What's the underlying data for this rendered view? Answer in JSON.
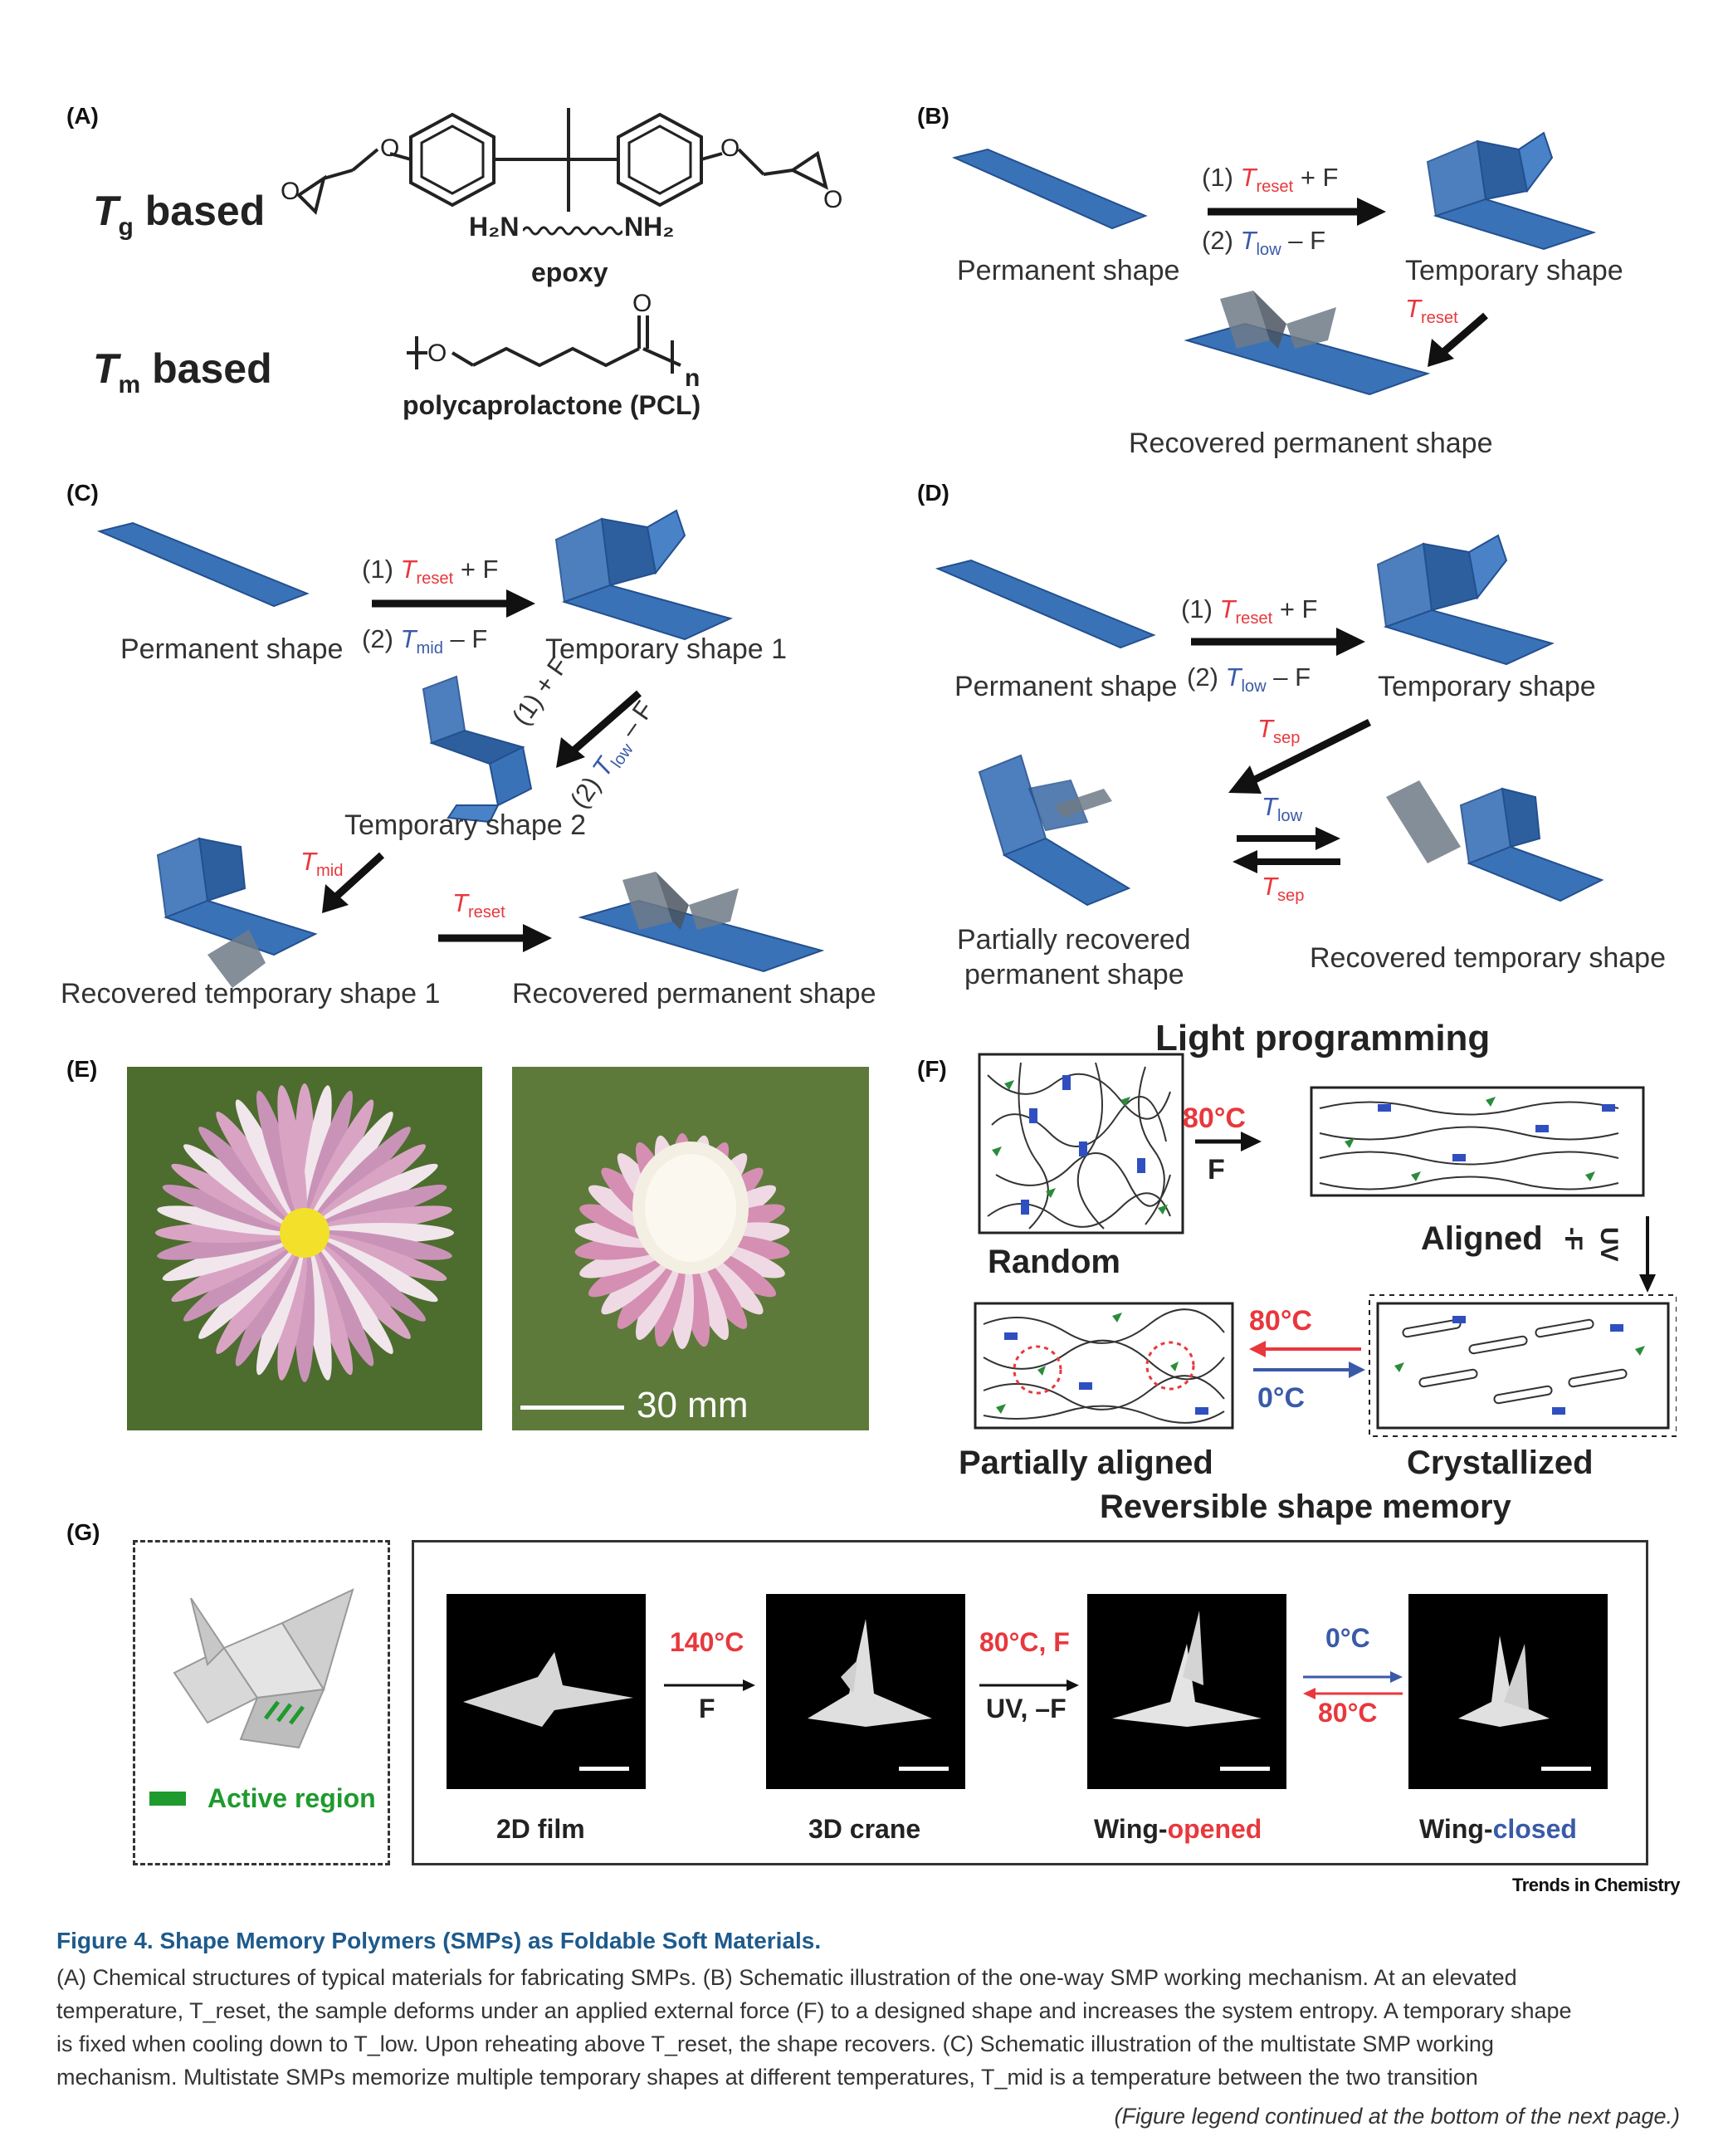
{
  "panels": {
    "A": {
      "label": "(A)",
      "tg": {
        "T": "T",
        "sub": "g",
        "rest": " based"
      },
      "tm": {
        "T": "T",
        "sub": "m",
        "rest": " based"
      },
      "epoxy_amine": "H₂N",
      "epoxy_amine_end": "NH₂",
      "epoxy_name": "epoxy",
      "pcl_name": "polycaprolactone (PCL)",
      "pcl_n": "n",
      "atom_O": "O"
    },
    "B": {
      "label": "(B)",
      "permanent": "Permanent shape",
      "temporary": "Temporary shape",
      "recovered": "Recovered permanent shape",
      "step1_prefix": "(1) ",
      "step1_T": "T",
      "step1_sub": "reset",
      "step1_suffix": " + F",
      "step2_prefix": "(2) ",
      "step2_T": "T",
      "step2_sub": "low",
      "step2_suffix": " – F",
      "reset_T": "T",
      "reset_sub": "reset"
    },
    "C": {
      "label": "(C)",
      "permanent": "Permanent shape",
      "temporary1": "Temporary shape 1",
      "temporary2": "Temporary shape 2",
      "recovered_temp1": "Recovered temporary shape 1",
      "recovered_perm": "Recovered permanent shape",
      "step1_prefix": "(1) ",
      "step1_T": "T",
      "step1_sub": "reset",
      "step1_suffix": " + F",
      "step2_prefix": "(2) ",
      "step2_T": "T",
      "step2_sub": "mid",
      "step2_suffix": " – F",
      "diag1": "(1) + F",
      "diag2_prefix": "(2) ",
      "diag2_T": "T",
      "diag2_sub": "low",
      "diag2_suffix": " – F",
      "mid_T": "T",
      "mid_sub": "mid",
      "reset_T": "T",
      "reset_sub": "reset"
    },
    "D": {
      "label": "(D)",
      "permanent": "Permanent shape",
      "temporary": "Temporary shape",
      "partial_line1": "Partially recovered",
      "partial_line2": "permanent shape",
      "recovered_temp": "Recovered temporary shape",
      "step1_prefix": "(1) ",
      "step1_T": "T",
      "step1_sub": "reset",
      "step1_suffix": " + F",
      "step2_prefix": "(2) ",
      "step2_T": "T",
      "step2_sub": "low",
      "step2_suffix": " – F",
      "sep_T": "T",
      "sep_sub": "sep",
      "low_T": "T",
      "low_sub": "low",
      "sep2_T": "T",
      "sep2_sub": "sep"
    },
    "E": {
      "label": "(E)",
      "scale": "30 mm"
    },
    "F": {
      "label": "(F)",
      "title": "Light programming",
      "random": "Random",
      "aligned": "Aligned",
      "partially_aligned": "Partially aligned",
      "crystallized": "Crystallized",
      "step_temp": "80°C",
      "step_force": "F",
      "uv": "UV",
      "minus_f": "-F",
      "heat": "80°C",
      "cool": "0°C",
      "footer": "Reversible shape memory"
    },
    "G": {
      "label": "(G)",
      "active_region": "Active region",
      "films": [
        "2D film",
        "3D crane",
        "Wing-",
        "Wing-"
      ],
      "wing_opened_color_word": "opened",
      "wing_closed_color_word": "closed",
      "step1_temp": "140°C",
      "step1_force": "F",
      "step2_temp": "80°C, F",
      "step2_uv": "UV, –F",
      "step3_cool": "0°C",
      "step3_heat": "80°C"
    }
  },
  "journal": "Trends in Chemistry",
  "figure_title": "Figure 4.  Shape Memory Polymers (SMPs) as Foldable Soft Materials.",
  "caption_lines": [
    "(A) Chemical structures of typical materials for fabricating SMPs. (B) Schematic illustration of the one-way SMP working mechanism. At an elevated",
    "temperature, T_reset, the sample deforms under an applied external force (F) to a designed shape and increases the system entropy. A temporary shape",
    "is fixed when cooling down to T_low. Upon reheating above T_reset, the shape recovers. (C) Schematic illustration of the multistate SMP working",
    "mechanism. Multistate SMPs memorize multiple temporary shapes at different temperatures, T_mid is a temperature between the two transition"
  ],
  "continued_note": "(Figure legend continued at the bottom of the next page.)",
  "colors": {
    "shape_blue": "#3a72b8",
    "shape_blue_dark": "#23508f",
    "shape_gray": "#6f7a86",
    "accent_red": "#e8383d",
    "accent_blue": "#3a5aa8",
    "title_blue": "#1e5a8c",
    "active_green": "#1f9a2e"
  }
}
